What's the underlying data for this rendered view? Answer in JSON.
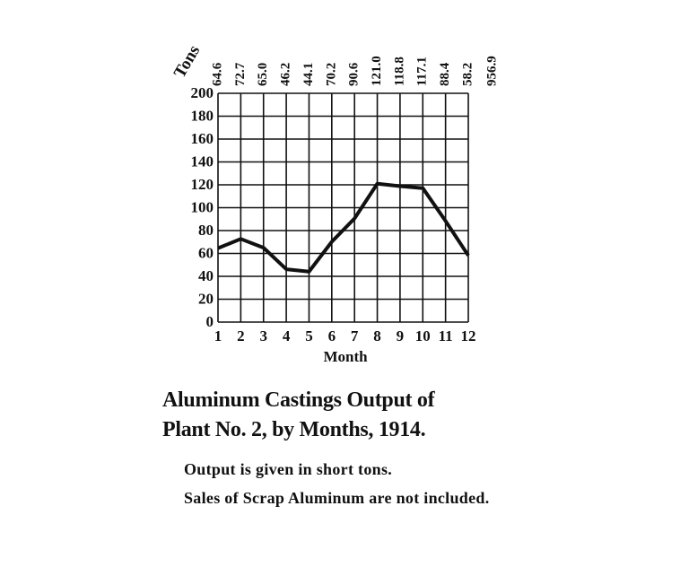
{
  "chart_data": {
    "type": "line",
    "title": [
      "Aluminum Castings Output of",
      "Plant No. 2, by Months, 1914."
    ],
    "notes": [
      "Output is given in short tons.",
      "Sales of Scrap Aluminum are not included."
    ],
    "x_label": "Month",
    "value_column_label": "Tons",
    "x": [
      1,
      2,
      3,
      4,
      5,
      6,
      7,
      8,
      9,
      10,
      11,
      12
    ],
    "values": [
      64.6,
      72.7,
      65.0,
      46.2,
      44.1,
      70.2,
      90.6,
      121.0,
      118.8,
      117.1,
      88.4,
      58.2
    ],
    "value_labels": [
      "64.6",
      "72.7",
      "65.0",
      "46.2",
      "44.1",
      "70.2",
      "90.6",
      "121.0",
      "118.8",
      "117.1",
      "88.4",
      "58.2"
    ],
    "total": 956.9,
    "color": "#111111",
    "xlim": [
      1,
      12
    ],
    "xticks": [
      1,
      2,
      3,
      4,
      5,
      6,
      7,
      8,
      9,
      10,
      11,
      12
    ],
    "ylim": [
      0,
      200
    ],
    "yticks": [
      0,
      20,
      40,
      60,
      80,
      100,
      120,
      140,
      160,
      180,
      200
    ],
    "grid": true
  }
}
